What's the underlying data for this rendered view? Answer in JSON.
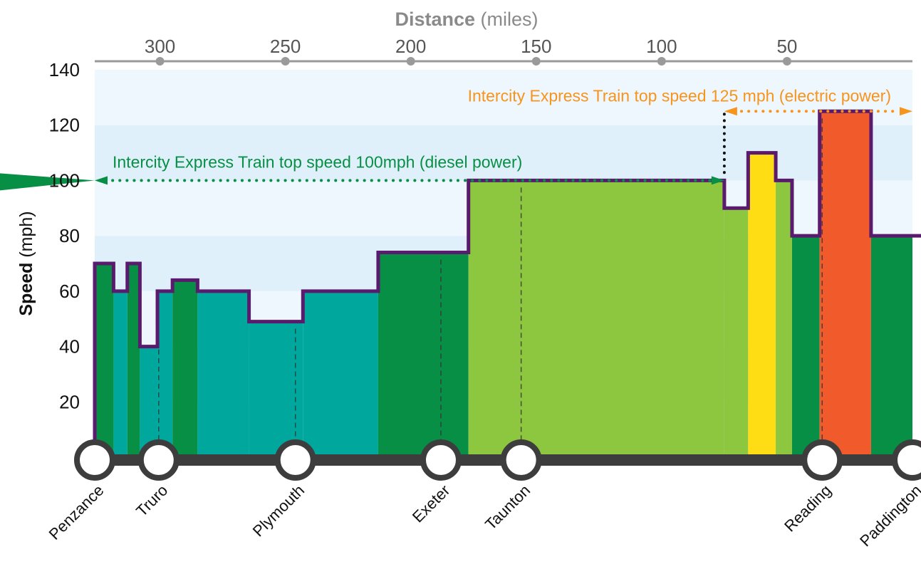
{
  "chart_data": {
    "type": "area",
    "xlabel_bold": "Distance",
    "xlabel_unit": " (miles)",
    "ylabel_bold": "Speed",
    "ylabel_unit": " (mph)",
    "ylim": [
      0,
      140
    ],
    "xlim": [
      326,
      0
    ],
    "y_ticks": [
      20,
      40,
      60,
      80,
      100,
      120,
      140
    ],
    "x_ticks": [
      300,
      250,
      200,
      150,
      100,
      50
    ],
    "background_bands": [
      "#dff0fa",
      "#eef7fd"
    ],
    "speed_profile": [
      {
        "from": 326,
        "to": 318.5,
        "speed": 70,
        "color": "#078f45"
      },
      {
        "from": 318.5,
        "to": 313,
        "speed": 60,
        "color": "#00a79d"
      },
      {
        "from": 313,
        "to": 308,
        "speed": 70,
        "color": "#078f45"
      },
      {
        "from": 308,
        "to": 301,
        "speed": 40,
        "color": "#00a79d"
      },
      {
        "from": 301,
        "to": 295,
        "speed": 60,
        "color": "#00a79d"
      },
      {
        "from": 295,
        "to": 285,
        "speed": 64,
        "color": "#078f45"
      },
      {
        "from": 285,
        "to": 264.5,
        "speed": 60,
        "color": "#00a79d"
      },
      {
        "from": 264.5,
        "to": 243,
        "speed": 49,
        "color": "#00a79d"
      },
      {
        "from": 243,
        "to": 213,
        "speed": 60,
        "color": "#00a79d"
      },
      {
        "from": 213,
        "to": 177,
        "speed": 74,
        "color": "#078f45"
      },
      {
        "from": 177,
        "to": 75,
        "speed": 100,
        "color": "#8dc63f"
      },
      {
        "from": 75,
        "to": 65.5,
        "speed": 90,
        "color": "#8dc63f"
      },
      {
        "from": 65.5,
        "to": 54.5,
        "speed": 110,
        "color": "#ffdd15"
      },
      {
        "from": 54.5,
        "to": 48,
        "speed": 100,
        "color": "#8dc63f"
      },
      {
        "from": 48,
        "to": 37,
        "speed": 80,
        "color": "#078f45"
      },
      {
        "from": 37,
        "to": 16.5,
        "speed": 125,
        "color": "#f15a2b"
      },
      {
        "from": 16.5,
        "to": 0,
        "speed": 80,
        "color": "#078f45"
      }
    ],
    "stations": [
      {
        "name": "Penzance",
        "mile": 326
      },
      {
        "name": "Truro",
        "mile": 300.5
      },
      {
        "name": "Plymouth",
        "mile": 246
      },
      {
        "name": "Exeter",
        "mile": 188
      },
      {
        "name": "Taunton",
        "mile": 156
      },
      {
        "name": "Reading",
        "mile": 36
      },
      {
        "name": "Paddington",
        "mile": 0
      }
    ],
    "annotations": {
      "diesel": {
        "text": "Intercity Express Train top speed 100mph (diesel power)",
        "speed": 100,
        "color": "#078f45"
      },
      "electric": {
        "text": "Intercity Express Train top speed 125 mph (electric power)",
        "speed": 125,
        "color": "#f7941d"
      }
    },
    "colors": {
      "profile_line": "#5a1a6e",
      "track": "#3d3d3d",
      "grid_axis": "#9a9a9a"
    }
  }
}
